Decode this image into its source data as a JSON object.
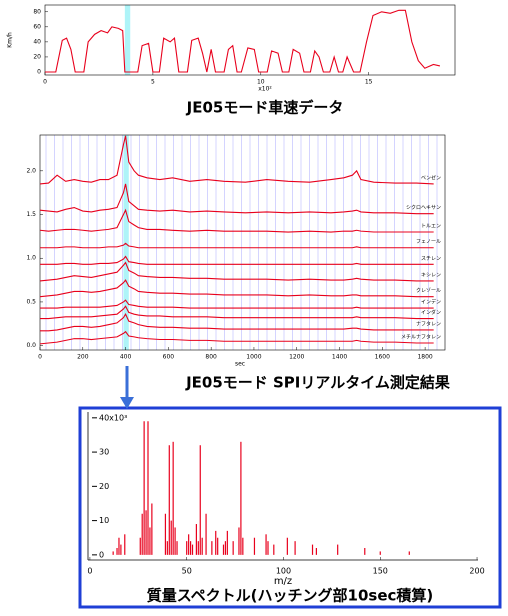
{
  "chart_data": [
    {
      "type": "line",
      "title": "JE05モード車速データ",
      "ylabel": "Km/h",
      "xlabel": "x10²",
      "color": "#e8001c",
      "xlim": [
        0,
        19
      ],
      "ylim": [
        -4,
        89
      ],
      "xticks": [
        0,
        5,
        10,
        15
      ],
      "yticks": [
        0,
        20,
        40,
        60,
        80
      ],
      "highlight_x": [
        3.7,
        3.95
      ],
      "x": [
        0,
        0.5,
        0.8,
        1.0,
        1.2,
        1.4,
        1.8,
        2.0,
        2.3,
        2.6,
        2.9,
        3.1,
        3.4,
        3.6,
        3.7,
        3.9,
        4.3,
        4.5,
        4.8,
        5.0,
        5.3,
        5.5,
        5.8,
        6.0,
        6.2,
        6.6,
        6.8,
        7.1,
        7.3,
        7.5,
        7.7,
        7.9,
        8.3,
        8.5,
        8.7,
        8.9,
        9.1,
        9.4,
        9.7,
        9.9,
        10.3,
        10.5,
        10.8,
        11.0,
        11.3,
        11.5,
        11.8,
        12.0,
        12.3,
        12.5,
        12.7,
        12.9,
        13.2,
        13.4,
        13.6,
        13.8,
        14.0,
        14.3,
        14.6,
        14.9,
        15.2,
        15.6,
        16.0,
        16.4,
        16.7,
        17.0,
        17.3,
        17.6,
        18.0,
        18.3
      ],
      "values": [
        0,
        0,
        42,
        45,
        30,
        0,
        0,
        40,
        50,
        55,
        52,
        60,
        58,
        55,
        0,
        0,
        0,
        35,
        38,
        0,
        0,
        45,
        40,
        45,
        0,
        0,
        42,
        45,
        25,
        0,
        30,
        0,
        0,
        30,
        35,
        0,
        0,
        32,
        30,
        0,
        0,
        28,
        25,
        0,
        0,
        30,
        25,
        0,
        0,
        28,
        20,
        0,
        0,
        20,
        0,
        0,
        20,
        0,
        0,
        40,
        75,
        80,
        78,
        82,
        82,
        40,
        15,
        5,
        10,
        8
      ]
    },
    {
      "type": "line",
      "title": "JE05モード SPIリアルタイム測定結果",
      "xlabel": "sec",
      "xlim": [
        0,
        1893
      ],
      "ylim": [
        -0.05,
        2.41
      ],
      "xticks": [
        0,
        200,
        400,
        600,
        800,
        1000,
        1200,
        1400,
        1600,
        1800
      ],
      "yticks": [
        {
          "value": 0,
          "label": "0.0"
        },
        {
          "value": 0.5,
          "label": "0.5"
        },
        {
          "value": 1,
          "label": "1.0"
        },
        {
          "value": 1.5,
          "label": "1.5"
        },
        {
          "value": 2,
          "label": "2.0"
        }
      ],
      "highlight_x": [
        390,
        415
      ],
      "x": [
        0,
        40,
        80,
        120,
        160,
        200,
        240,
        280,
        320,
        360,
        390,
        400,
        415,
        440,
        460,
        500,
        560,
        620,
        700,
        780,
        860,
        960,
        1060,
        1160,
        1260,
        1360,
        1420,
        1460,
        1480,
        1500,
        1560,
        1660,
        1760,
        1840
      ],
      "series": [
        {
          "name": "ベンゼン",
          "color": "#e8001c",
          "values": [
            1.85,
            1.86,
            1.95,
            1.88,
            1.9,
            1.88,
            1.87,
            1.9,
            1.9,
            1.95,
            2.3,
            2.4,
            2.1,
            2.0,
            1.95,
            1.92,
            1.9,
            1.92,
            1.88,
            1.9,
            1.88,
            1.87,
            1.9,
            1.88,
            1.87,
            1.9,
            1.92,
            1.95,
            2.0,
            1.9,
            1.87,
            1.86,
            1.86,
            1.85
          ]
        },
        {
          "name": "シクロヘキサン",
          "color": "#e8001c",
          "values": [
            1.55,
            1.54,
            1.53,
            1.56,
            1.58,
            1.54,
            1.53,
            1.55,
            1.56,
            1.58,
            1.75,
            1.85,
            1.65,
            1.6,
            1.56,
            1.55,
            1.54,
            1.55,
            1.53,
            1.54,
            1.53,
            1.52,
            1.53,
            1.52,
            1.53,
            1.52,
            1.53,
            1.54,
            1.55,
            1.53,
            1.52,
            1.52,
            1.51,
            1.51
          ]
        },
        {
          "name": "トルエン",
          "color": "#e8001c",
          "values": [
            1.32,
            1.31,
            1.32,
            1.33,
            1.33,
            1.32,
            1.31,
            1.32,
            1.33,
            1.35,
            1.5,
            1.55,
            1.42,
            1.38,
            1.35,
            1.33,
            1.33,
            1.32,
            1.31,
            1.32,
            1.31,
            1.31,
            1.31,
            1.3,
            1.31,
            1.3,
            1.31,
            1.31,
            1.32,
            1.31,
            1.3,
            1.3,
            1.3,
            1.3
          ]
        },
        {
          "name": "フェノール",
          "color": "#e8001c",
          "values": [
            1.12,
            1.12,
            1.12,
            1.13,
            1.13,
            1.12,
            1.12,
            1.12,
            1.13,
            1.13,
            1.15,
            1.17,
            1.14,
            1.13,
            1.12,
            1.12,
            1.12,
            1.12,
            1.12,
            1.12,
            1.12,
            1.12,
            1.12,
            1.12,
            1.12,
            1.12,
            1.12,
            1.12,
            1.13,
            1.12,
            1.12,
            1.12,
            1.12,
            1.12
          ]
        },
        {
          "name": "スチレン",
          "color": "#e8001c",
          "values": [
            0.93,
            0.93,
            0.93,
            0.94,
            0.94,
            0.93,
            0.93,
            0.94,
            0.94,
            0.95,
            0.99,
            1.02,
            0.96,
            0.95,
            0.94,
            0.93,
            0.93,
            0.93,
            0.93,
            0.93,
            0.93,
            0.93,
            0.93,
            0.93,
            0.93,
            0.93,
            0.93,
            0.93,
            0.94,
            0.93,
            0.93,
            0.93,
            0.93,
            0.93
          ]
        },
        {
          "name": "キシレン",
          "color": "#e8001c",
          "values": [
            0.74,
            0.75,
            0.76,
            0.78,
            0.8,
            0.79,
            0.78,
            0.8,
            0.82,
            0.84,
            0.92,
            0.95,
            0.86,
            0.83,
            0.8,
            0.79,
            0.78,
            0.78,
            0.77,
            0.77,
            0.76,
            0.76,
            0.76,
            0.75,
            0.76,
            0.75,
            0.75,
            0.76,
            0.77,
            0.76,
            0.75,
            0.75,
            0.74,
            0.74
          ]
        },
        {
          "name": "クレゾール",
          "color": "#e8001c",
          "values": [
            0.56,
            0.57,
            0.58,
            0.6,
            0.62,
            0.62,
            0.61,
            0.62,
            0.64,
            0.66,
            0.72,
            0.75,
            0.68,
            0.65,
            0.62,
            0.61,
            0.6,
            0.6,
            0.59,
            0.59,
            0.58,
            0.58,
            0.58,
            0.57,
            0.58,
            0.57,
            0.57,
            0.58,
            0.58,
            0.57,
            0.57,
            0.57,
            0.56,
            0.56
          ]
        },
        {
          "name": "インデン",
          "color": "#e8001c",
          "values": [
            0.43,
            0.43,
            0.43,
            0.44,
            0.44,
            0.44,
            0.44,
            0.44,
            0.45,
            0.46,
            0.5,
            0.52,
            0.47,
            0.46,
            0.45,
            0.44,
            0.44,
            0.44,
            0.43,
            0.43,
            0.43,
            0.43,
            0.43,
            0.43,
            0.43,
            0.43,
            0.43,
            0.43,
            0.44,
            0.43,
            0.43,
            0.43,
            0.43,
            0.43
          ]
        },
        {
          "name": "インダン",
          "color": "#e8001c",
          "values": [
            0.31,
            0.31,
            0.32,
            0.33,
            0.33,
            0.33,
            0.33,
            0.34,
            0.35,
            0.36,
            0.42,
            0.45,
            0.38,
            0.36,
            0.35,
            0.34,
            0.34,
            0.33,
            0.33,
            0.33,
            0.32,
            0.32,
            0.32,
            0.32,
            0.32,
            0.32,
            0.32,
            0.32,
            0.33,
            0.32,
            0.32,
            0.32,
            0.31,
            0.31
          ]
        },
        {
          "name": "ナフタレン",
          "color": "#e8001c",
          "values": [
            0.17,
            0.17,
            0.18,
            0.2,
            0.22,
            0.22,
            0.21,
            0.22,
            0.24,
            0.26,
            0.32,
            0.36,
            0.28,
            0.26,
            0.24,
            0.22,
            0.21,
            0.21,
            0.2,
            0.2,
            0.19,
            0.19,
            0.19,
            0.19,
            0.19,
            0.19,
            0.19,
            0.2,
            0.2,
            0.19,
            0.18,
            0.18,
            0.18,
            0.18
          ]
        },
        {
          "name": "メチルナフタレン",
          "color": "#e8001c",
          "values": [
            0.02,
            0.03,
            0.04,
            0.06,
            0.08,
            0.08,
            0.07,
            0.08,
            0.09,
            0.1,
            0.14,
            0.16,
            0.11,
            0.1,
            0.09,
            0.08,
            0.07,
            0.07,
            0.06,
            0.06,
            0.05,
            0.05,
            0.05,
            0.05,
            0.05,
            0.05,
            0.05,
            0.05,
            0.06,
            0.05,
            0.04,
            0.04,
            0.03,
            0.03
          ]
        }
      ]
    },
    {
      "type": "bar",
      "title": "質量スペクトル(ハッチング部10sec積算)",
      "xlabel": "m/z",
      "color": "#e8001c",
      "xlim": [
        -1,
        200.5
      ],
      "ylim": [
        -1.5,
        41.7
      ],
      "xticks": [
        0,
        50,
        100,
        150,
        200
      ],
      "yticks": [
        0,
        10,
        20,
        30,
        {
          "value": 40,
          "label": "40x10³"
        }
      ],
      "x": [
        12,
        14,
        15,
        16,
        18,
        26,
        27,
        28,
        29,
        30,
        31,
        32,
        39,
        40,
        41,
        42,
        43,
        44,
        45,
        50,
        51,
        52,
        53,
        55,
        56,
        57,
        58,
        60,
        63,
        65,
        66,
        69,
        70,
        71,
        74,
        77,
        78,
        79,
        85,
        91,
        92,
        95,
        102,
        106,
        115,
        117,
        128,
        142,
        150,
        165
      ],
      "values": [
        1,
        2,
        5,
        3,
        6,
        5,
        12,
        39,
        13,
        39,
        8,
        15,
        12,
        4,
        32,
        10,
        33,
        8,
        4,
        4,
        6,
        4,
        3,
        9,
        4,
        32,
        5,
        12,
        4,
        7,
        5,
        3,
        4,
        7,
        4,
        8,
        33,
        5,
        5,
        6,
        4,
        3,
        5,
        4,
        3,
        2,
        3,
        2,
        1,
        1
      ]
    }
  ]
}
